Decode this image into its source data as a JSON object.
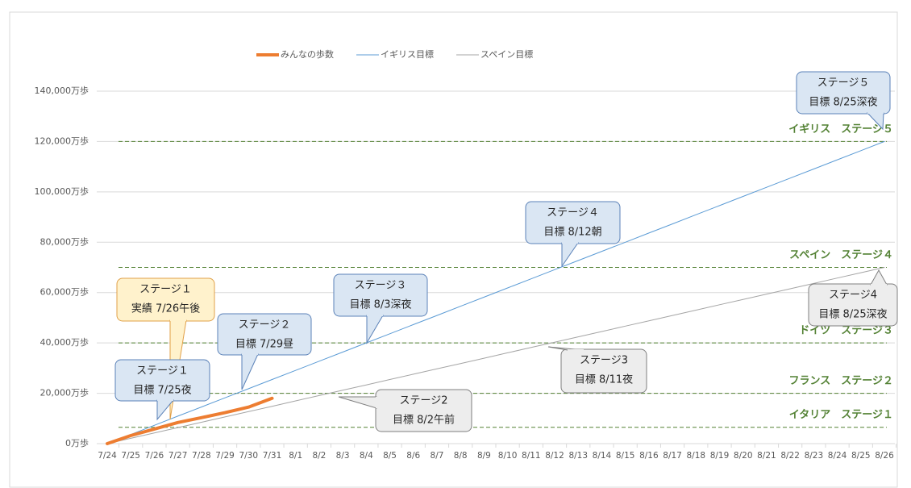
{
  "chart_data": {
    "type": "line",
    "categories": [
      "7/24",
      "7/25",
      "7/26",
      "7/27",
      "7/28",
      "7/29",
      "7/30",
      "7/31",
      "8/1",
      "8/2",
      "8/3",
      "8/4",
      "8/5",
      "8/6",
      "8/7",
      "8/8",
      "8/9",
      "8/10",
      "8/11",
      "8/12",
      "8/13",
      "8/14",
      "8/15",
      "8/16",
      "8/17",
      "8/18",
      "8/19",
      "8/20",
      "8/21",
      "8/22",
      "8/23",
      "8/24",
      "8/25",
      "8/26"
    ],
    "series": [
      {
        "name": "みんなの歩数",
        "color": "#ed7d31",
        "width": 4,
        "values": [
          0,
          3200,
          5800,
          8400,
          10300,
          12300,
          14500,
          18000,
          null,
          null,
          null,
          null,
          null,
          null,
          null,
          null,
          null,
          null,
          null,
          null,
          null,
          null,
          null,
          null,
          null,
          null,
          null,
          null,
          null,
          null,
          null,
          null,
          null,
          null
        ]
      },
      {
        "name": "イギリス目標",
        "color": "#5b9bd5",
        "width": 1,
        "values": [
          0,
          3636,
          7273,
          10909,
          14545,
          18182,
          21818,
          25455,
          29091,
          32727,
          36364,
          40000,
          43636,
          47273,
          50909,
          54545,
          58182,
          61818,
          65455,
          69091,
          72727,
          76364,
          80000,
          83636,
          87273,
          90909,
          94545,
          98182,
          101818,
          105455,
          109091,
          112727,
          116364,
          120000
        ]
      },
      {
        "name": "スペイン目標",
        "color": "#a5a5a5",
        "width": 1,
        "values": [
          0,
          2121,
          4242,
          6364,
          8485,
          10606,
          12727,
          14848,
          16970,
          19091,
          21212,
          23333,
          25455,
          27576,
          29697,
          31818,
          33939,
          36061,
          38182,
          40303,
          42424,
          44545,
          46667,
          48788,
          50909,
          53030,
          55152,
          57273,
          59394,
          61515,
          63636,
          65758,
          67879,
          70000
        ]
      }
    ],
    "ylim": [
      0,
      140000
    ],
    "yticks": [
      {
        "value": 0,
        "label": "0万歩"
      },
      {
        "value": 20000,
        "label": "20,000万歩"
      },
      {
        "value": 40000,
        "label": "40,000万歩"
      },
      {
        "value": 60000,
        "label": "60,000万歩"
      },
      {
        "value": 80000,
        "label": "80,000万歩"
      },
      {
        "value": 100000,
        "label": "100,000万歩"
      },
      {
        "value": 120000,
        "label": "120,000万歩"
      },
      {
        "value": 140000,
        "label": "140,000万歩"
      }
    ],
    "grid": true,
    "legend": "top",
    "reference_lines": [
      {
        "value": 6500,
        "label": "イタリア　ステージ１"
      },
      {
        "value": 20000,
        "label": "フランス　ステージ２"
      },
      {
        "value": 40000,
        "label": "ドイツ　ステージ３"
      },
      {
        "value": 70000,
        "label": "スペイン　ステージ４"
      },
      {
        "value": 120000,
        "label": "イギリス　ステージ５"
      }
    ],
    "reference_color": "#548235",
    "annotations": [
      {
        "style": "orange",
        "lines": [
          "ステージ１",
          "実績 7/26午後"
        ]
      },
      {
        "style": "blue",
        "lines": [
          "ステージ１",
          "目標 7/25夜"
        ]
      },
      {
        "style": "blue",
        "lines": [
          "ステージ２",
          "目標 7/29昼"
        ]
      },
      {
        "style": "blue",
        "lines": [
          "ステージ３",
          "目標 8/3深夜"
        ]
      },
      {
        "style": "blue",
        "lines": [
          "ステージ４",
          "目標 8/12朝"
        ]
      },
      {
        "style": "blue",
        "lines": [
          "ステージ５",
          "目標 8/25深夜"
        ]
      },
      {
        "style": "gray",
        "lines": [
          "ステージ2",
          "目標 8/2午前"
        ]
      },
      {
        "style": "gray",
        "lines": [
          "ステージ3",
          "目標 8/11夜"
        ]
      },
      {
        "style": "gray",
        "lines": [
          "ステージ4",
          "目標 8/25深夜"
        ]
      }
    ]
  }
}
